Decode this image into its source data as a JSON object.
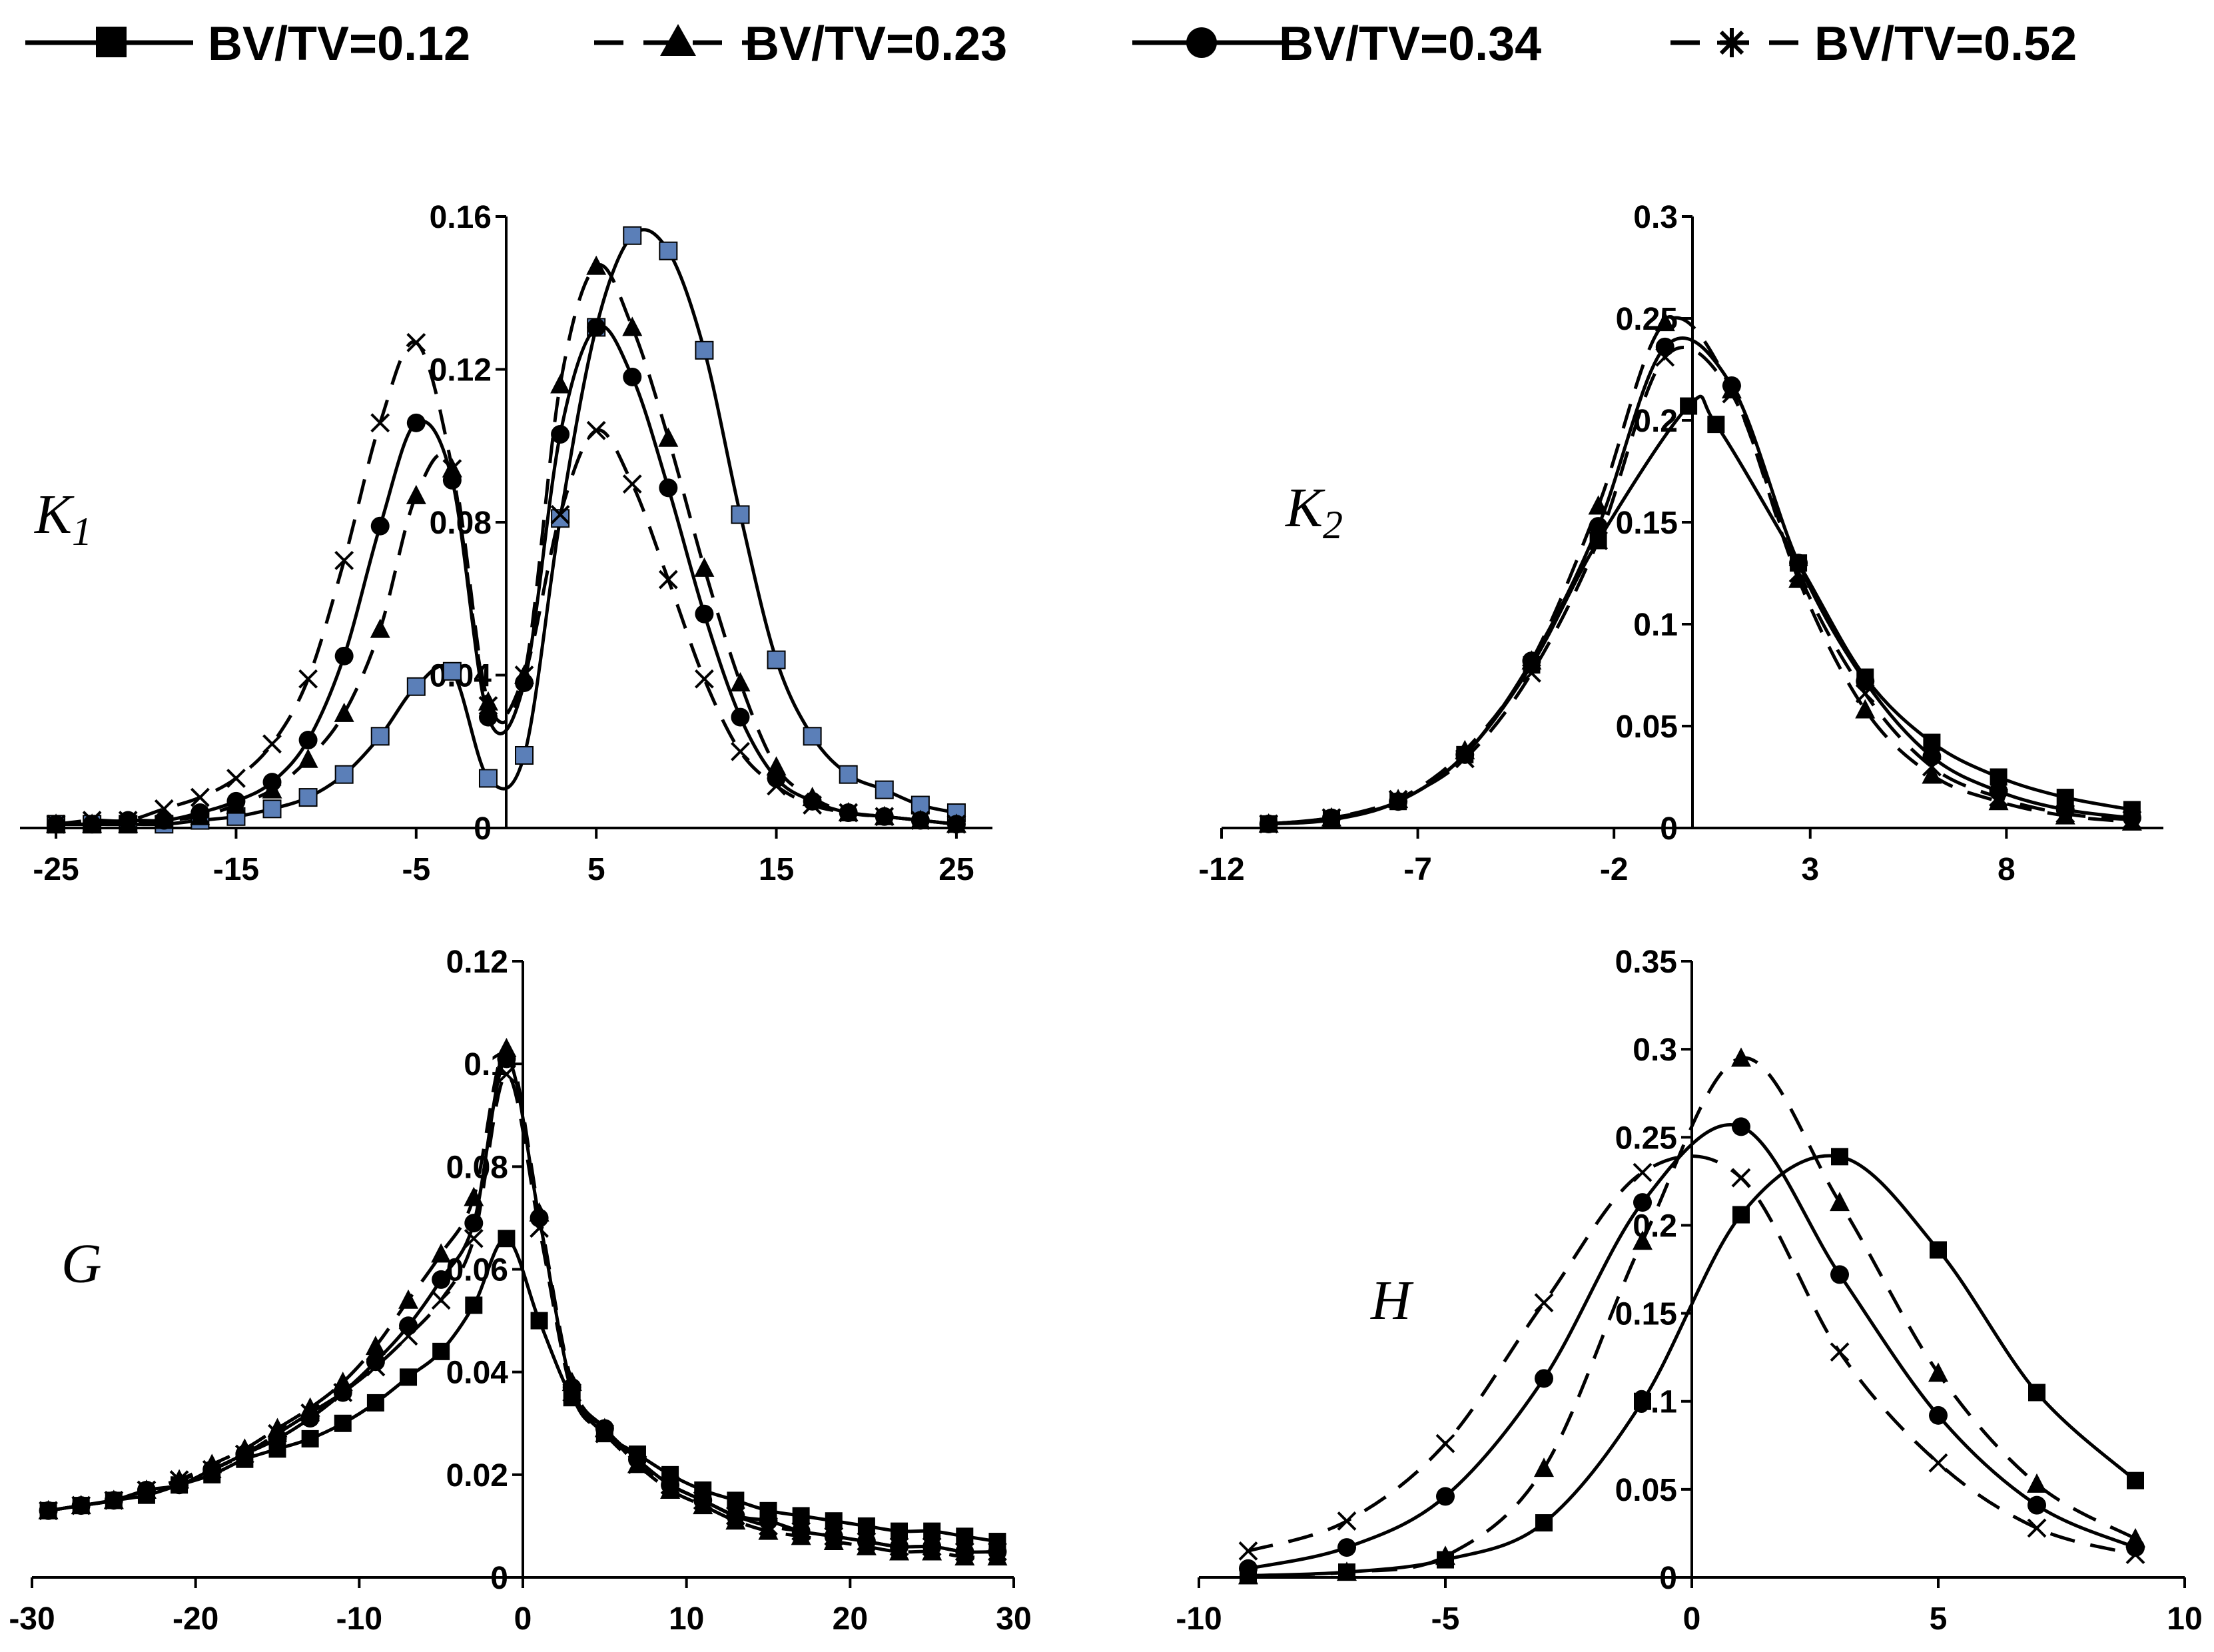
{
  "legend": [
    {
      "name": "BV/TV=0.12",
      "dash": "solid",
      "marker": "square"
    },
    {
      "name": "BV/TV=0.23",
      "dash": "dashed",
      "marker": "triangle"
    },
    {
      "name": "BV/TV=0.34",
      "dash": "solid",
      "marker": "circle"
    },
    {
      "name": "BV/TV=0.52",
      "dash": "dashed",
      "marker": "star"
    }
  ],
  "chart_data": [
    {
      "id": "K1",
      "type": "line",
      "label_main": "K",
      "label_sub": "1",
      "xlim": [
        -27,
        27
      ],
      "ylim": [
        0,
        0.16
      ],
      "xticks": [
        -25,
        -15,
        -5,
        5,
        15,
        25
      ],
      "yticks": [
        0,
        0.04,
        0.08,
        0.12,
        0.16
      ],
      "ytick_labels": [
        "0",
        "0.04",
        "0.08",
        "0.12",
        "0.16"
      ],
      "series": [
        {
          "name": "BV/TV=0.12",
          "marker_color": "#5b7fb8",
          "x": [
            -25,
            -23,
            -21,
            -19,
            -17,
            -15,
            -13,
            -11,
            -9,
            -7,
            -5,
            -3,
            -1,
            1,
            3,
            5,
            7,
            9,
            11,
            13,
            15,
            17,
            19,
            21,
            23,
            25
          ],
          "y": [
            0.001,
            0.001,
            0.001,
            0.001,
            0.002,
            0.003,
            0.005,
            0.008,
            0.014,
            0.024,
            0.037,
            0.041,
            0.013,
            0.019,
            0.081,
            0.131,
            0.155,
            0.151,
            0.125,
            0.082,
            0.044,
            0.024,
            0.014,
            0.01,
            0.006,
            0.004
          ]
        },
        {
          "name": "BV/TV=0.23",
          "x": [
            -25,
            -23,
            -21,
            -19,
            -17,
            -15,
            -13,
            -11,
            -9,
            -7,
            -5,
            -3,
            -1,
            1,
            3,
            5,
            7,
            9,
            11,
            13,
            15,
            17,
            19,
            21,
            23,
            25
          ],
          "y": [
            0.001,
            0.001,
            0.001,
            0.002,
            0.003,
            0.006,
            0.01,
            0.018,
            0.03,
            0.052,
            0.087,
            0.094,
            0.033,
            0.04,
            0.116,
            0.147,
            0.131,
            0.102,
            0.068,
            0.038,
            0.016,
            0.008,
            0.004,
            0.003,
            0.002,
            0.001
          ]
        },
        {
          "name": "BV/TV=0.34",
          "x": [
            -25,
            -23,
            -21,
            -19,
            -17,
            -15,
            -13,
            -11,
            -9,
            -7,
            -5,
            -3,
            -1,
            1,
            3,
            5,
            7,
            9,
            11,
            13,
            15,
            17,
            19,
            21,
            23,
            25
          ],
          "y": [
            0.001,
            0.001,
            0.002,
            0.002,
            0.004,
            0.007,
            0.012,
            0.023,
            0.045,
            0.079,
            0.106,
            0.091,
            0.029,
            0.038,
            0.103,
            0.131,
            0.118,
            0.089,
            0.056,
            0.029,
            0.013,
            0.007,
            0.004,
            0.003,
            0.002,
            0.001
          ]
        },
        {
          "name": "BV/TV=0.52",
          "x": [
            -25,
            -23,
            -21,
            -19,
            -17,
            -15,
            -13,
            -11,
            -9,
            -7,
            -5,
            -3,
            -1,
            1,
            3,
            5,
            7,
            9,
            11,
            13,
            15,
            17,
            19,
            21,
            23,
            25
          ],
          "y": [
            0.001,
            0.002,
            0.002,
            0.005,
            0.008,
            0.013,
            0.022,
            0.039,
            0.07,
            0.106,
            0.127,
            0.094,
            0.032,
            0.04,
            0.082,
            0.104,
            0.09,
            0.065,
            0.039,
            0.02,
            0.011,
            0.006,
            0.004,
            0.003,
            0.002,
            0.001
          ]
        }
      ]
    },
    {
      "id": "K2",
      "type": "line",
      "label_main": "K",
      "label_sub": "2",
      "xlim": [
        -12,
        12
      ],
      "ylim": [
        0,
        0.3
      ],
      "xticks": [
        -12,
        -7,
        -2,
        3,
        8
      ],
      "yticks": [
        0,
        0.05,
        0.1,
        0.15,
        0.2,
        0.25,
        0.3
      ],
      "ytick_labels": [
        "0",
        "0.05",
        "0.1",
        "0.15",
        "0.2",
        "0.25",
        "0.3"
      ],
      "series": [
        {
          "name": "BV/TV=0.12",
          "x": [
            -10.8,
            -9.2,
            -7.5,
            -5.8,
            -4.1,
            -2.4,
            -0.1,
            0.6,
            2.7,
            4.4,
            6.1,
            7.8,
            9.5,
            11.2
          ],
          "y": [
            0.002,
            0.004,
            0.013,
            0.036,
            0.08,
            0.141,
            0.207,
            0.198,
            0.13,
            0.074,
            0.042,
            0.025,
            0.015,
            0.009
          ]
        },
        {
          "name": "BV/TV=0.23",
          "x": [
            -10.8,
            -9.2,
            -7.5,
            -5.8,
            -4.1,
            -2.4,
            -0.7,
            1.0,
            2.7,
            4.4,
            6.1,
            7.8,
            9.5,
            11.2
          ],
          "y": [
            0.002,
            0.005,
            0.014,
            0.038,
            0.082,
            0.158,
            0.248,
            0.215,
            0.122,
            0.058,
            0.026,
            0.013,
            0.006,
            0.003
          ]
        },
        {
          "name": "BV/TV=0.34",
          "x": [
            -10.8,
            -9.2,
            -7.5,
            -5.8,
            -4.1,
            -2.4,
            -0.7,
            1.0,
            2.7,
            4.4,
            6.1,
            7.8,
            9.5,
            11.2
          ],
          "y": [
            0.002,
            0.005,
            0.013,
            0.036,
            0.082,
            0.148,
            0.236,
            0.217,
            0.13,
            0.072,
            0.035,
            0.018,
            0.009,
            0.005
          ]
        },
        {
          "name": "BV/TV=0.52",
          "x": [
            -10.8,
            -9.2,
            -7.5,
            -5.8,
            -4.1,
            -2.4,
            -0.7,
            1.0,
            2.7,
            4.4,
            6.1,
            7.8,
            9.5,
            11.2
          ],
          "y": [
            0.002,
            0.005,
            0.014,
            0.034,
            0.076,
            0.141,
            0.231,
            0.213,
            0.125,
            0.066,
            0.03,
            0.015,
            0.007,
            0.004
          ]
        }
      ]
    },
    {
      "id": "G",
      "type": "line",
      "label_main": "G",
      "label_sub": "",
      "xlim": [
        -30,
        30
      ],
      "ylim": [
        0,
        0.12
      ],
      "xticks": [
        -30,
        -20,
        -10,
        0,
        10,
        20,
        30
      ],
      "yticks": [
        0,
        0.02,
        0.04,
        0.06,
        0.08,
        0.1,
        0.12
      ],
      "ytick_labels": [
        "0",
        "0.02",
        "0.04",
        "0.06",
        "0.08",
        "0.1",
        "0.12"
      ],
      "series": [
        {
          "name": "BV/TV=0.12",
          "x": [
            -29,
            -27,
            -25,
            -23,
            -21,
            -19,
            -17,
            -15,
            -13,
            -11,
            -9,
            -7,
            -5,
            -3,
            -1,
            1,
            3,
            5,
            7,
            9,
            11,
            13,
            15,
            17,
            19,
            21,
            23,
            25,
            27,
            29
          ],
          "y": [
            0.013,
            0.014,
            0.015,
            0.016,
            0.018,
            0.02,
            0.023,
            0.025,
            0.027,
            0.03,
            0.034,
            0.039,
            0.044,
            0.053,
            0.066,
            0.05,
            0.035,
            0.028,
            0.024,
            0.02,
            0.017,
            0.015,
            0.013,
            0.012,
            0.011,
            0.01,
            0.009,
            0.009,
            0.008,
            0.007
          ]
        },
        {
          "name": "BV/TV=0.23",
          "x": [
            -29,
            -27,
            -25,
            -23,
            -21,
            -19,
            -17,
            -15,
            -13,
            -11,
            -9,
            -7,
            -5,
            -3,
            -1,
            1,
            3,
            5,
            7,
            9,
            11,
            13,
            15,
            17,
            19,
            21,
            23,
            25,
            27,
            29
          ],
          "y": [
            0.013,
            0.014,
            0.015,
            0.017,
            0.019,
            0.022,
            0.025,
            0.029,
            0.033,
            0.038,
            0.045,
            0.054,
            0.063,
            0.074,
            0.103,
            0.071,
            0.038,
            0.029,
            0.022,
            0.017,
            0.014,
            0.011,
            0.009,
            0.008,
            0.007,
            0.006,
            0.005,
            0.005,
            0.004,
            0.004
          ]
        },
        {
          "name": "BV/TV=0.34",
          "x": [
            -29,
            -27,
            -25,
            -23,
            -21,
            -19,
            -17,
            -15,
            -13,
            -11,
            -9,
            -7,
            -5,
            -3,
            -1,
            1,
            3,
            5,
            7,
            9,
            11,
            13,
            15,
            17,
            19,
            21,
            23,
            25,
            27,
            29
          ],
          "y": [
            0.013,
            0.014,
            0.015,
            0.017,
            0.018,
            0.021,
            0.024,
            0.027,
            0.031,
            0.036,
            0.042,
            0.049,
            0.058,
            0.069,
            0.101,
            0.07,
            0.037,
            0.029,
            0.023,
            0.018,
            0.015,
            0.012,
            0.011,
            0.009,
            0.008,
            0.007,
            0.006,
            0.006,
            0.005,
            0.005
          ]
        },
        {
          "name": "BV/TV=0.52",
          "x": [
            -29,
            -27,
            -25,
            -23,
            -21,
            -19,
            -17,
            -15,
            -13,
            -11,
            -9,
            -7,
            -5,
            -3,
            -1,
            1,
            3,
            5,
            7,
            9,
            11,
            13,
            15,
            17,
            19,
            21,
            23,
            25,
            27,
            29
          ],
          "y": [
            0.013,
            0.014,
            0.015,
            0.017,
            0.019,
            0.021,
            0.024,
            0.028,
            0.032,
            0.036,
            0.041,
            0.047,
            0.054,
            0.066,
            0.098,
            0.068,
            0.036,
            0.028,
            0.022,
            0.018,
            0.015,
            0.012,
            0.01,
            0.009,
            0.008,
            0.007,
            0.006,
            0.006,
            0.005,
            0.005
          ]
        }
      ]
    },
    {
      "id": "H",
      "type": "line",
      "label_main": "H",
      "label_sub": "",
      "xlim": [
        -10,
        10
      ],
      "ylim": [
        0,
        0.35
      ],
      "xticks": [
        -10,
        -5,
        0,
        5,
        10
      ],
      "yticks": [
        0,
        0.05,
        0.1,
        0.15,
        0.2,
        0.25,
        0.3,
        0.35
      ],
      "ytick_labels": [
        "0",
        "0.05",
        "0.1",
        "0.15",
        "0.2",
        "0.25",
        "0.3",
        "0.35"
      ],
      "series": [
        {
          "name": "BV/TV=0.12",
          "x": [
            -9,
            -7,
            -5,
            -3,
            -1,
            1,
            3,
            5,
            7,
            9
          ],
          "y": [
            0.001,
            0.003,
            0.01,
            0.031,
            0.1,
            0.206,
            0.239,
            0.186,
            0.105,
            0.055
          ]
        },
        {
          "name": "BV/TV=0.23",
          "x": [
            -9,
            -7,
            -5,
            -3,
            -1,
            1,
            3,
            5,
            7,
            9
          ],
          "y": [
            0.001,
            0.003,
            0.012,
            0.062,
            0.191,
            0.295,
            0.213,
            0.116,
            0.053,
            0.022
          ]
        },
        {
          "name": "BV/TV=0.34",
          "x": [
            -9,
            -7,
            -5,
            -3,
            -1,
            1,
            3,
            5,
            7,
            9
          ],
          "y": [
            0.005,
            0.017,
            0.046,
            0.113,
            0.213,
            0.256,
            0.172,
            0.092,
            0.041,
            0.017
          ]
        },
        {
          "name": "BV/TV=0.52",
          "x": [
            -9,
            -7,
            -5,
            -3,
            -1,
            1,
            3,
            5,
            7,
            9
          ],
          "y": [
            0.015,
            0.032,
            0.076,
            0.156,
            0.23,
            0.227,
            0.128,
            0.065,
            0.028,
            0.013
          ]
        }
      ]
    }
  ]
}
